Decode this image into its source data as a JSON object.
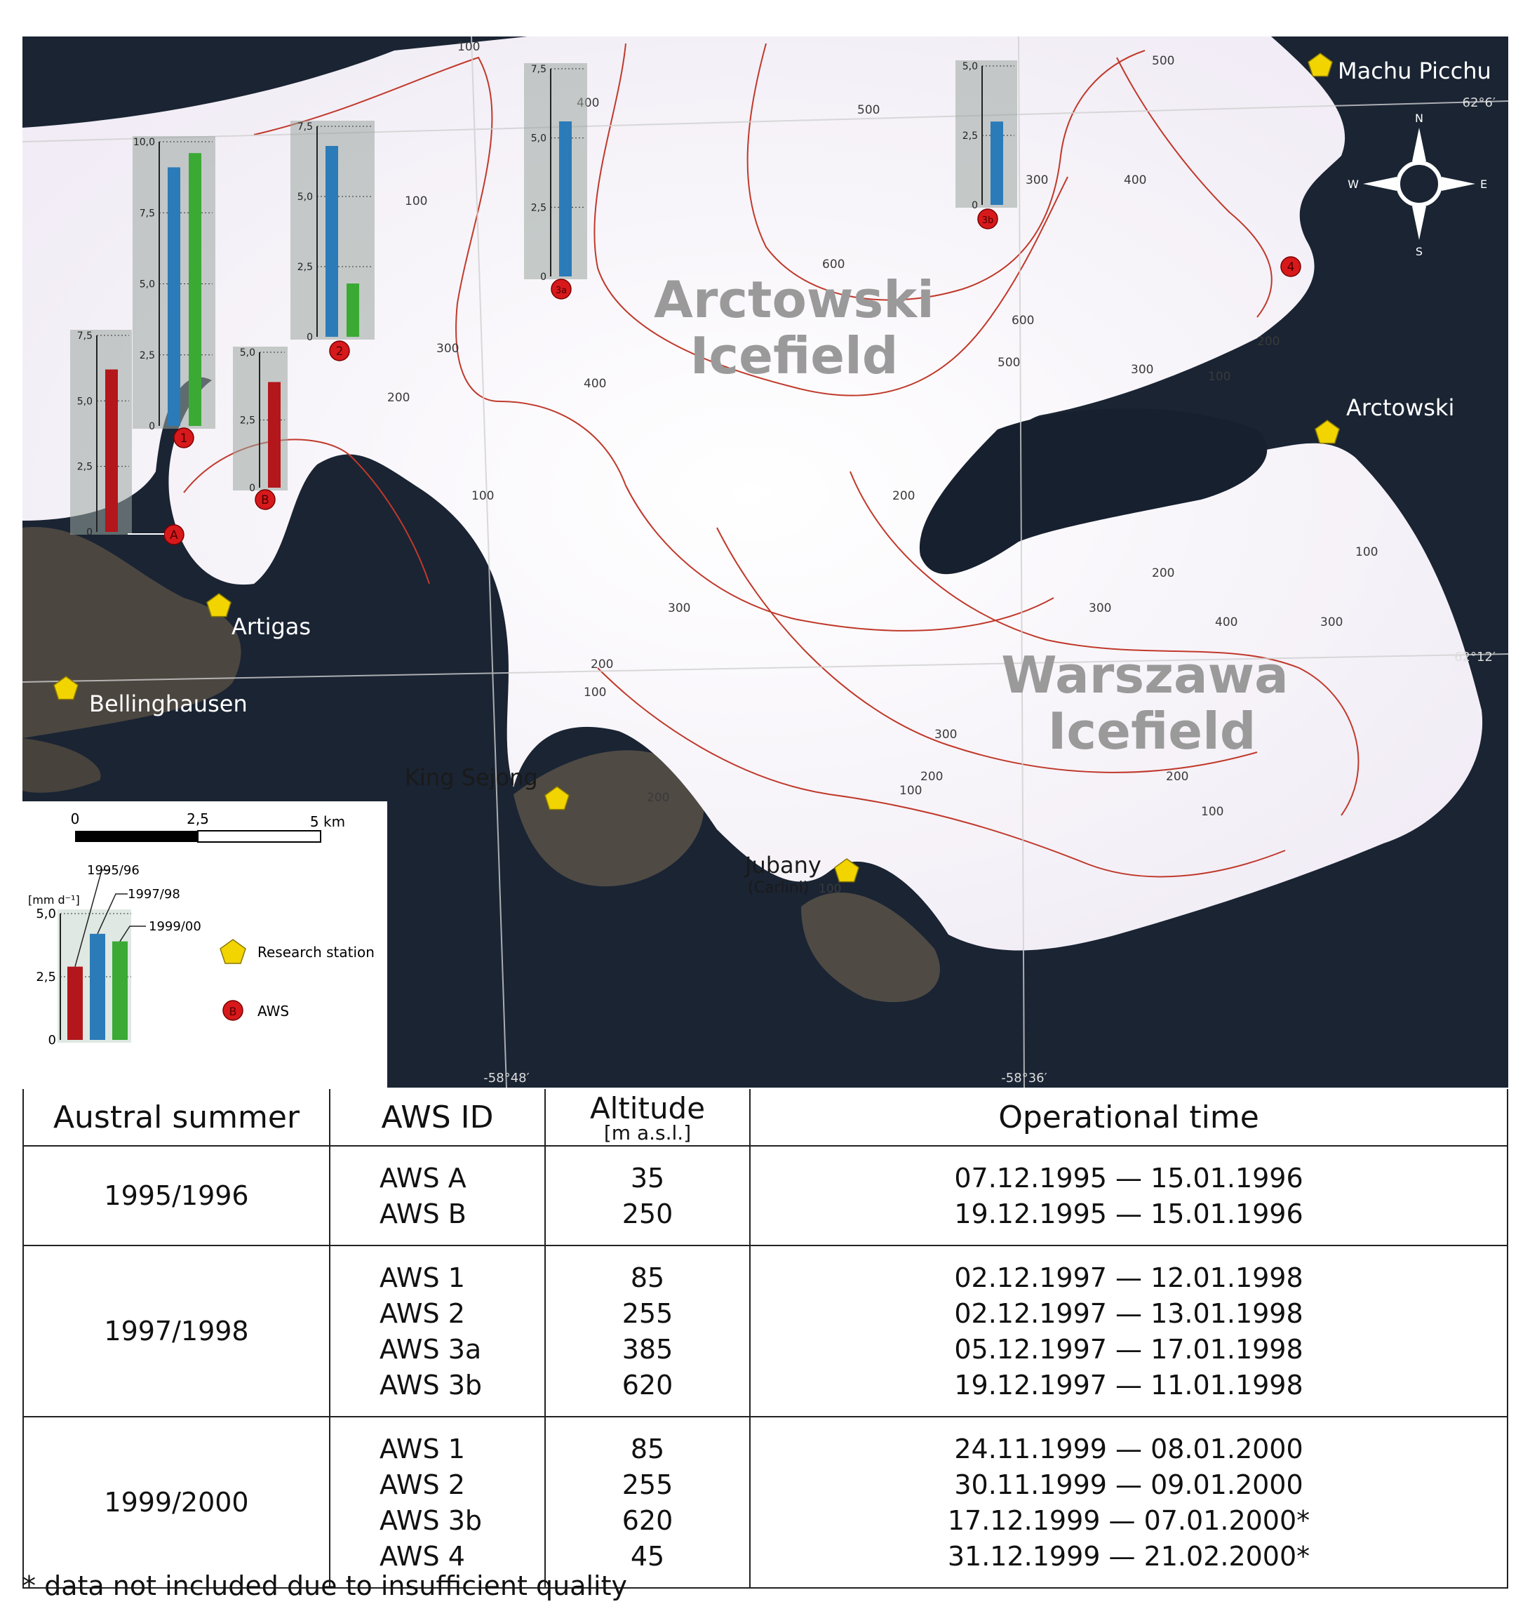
{
  "map": {
    "field_labels": [
      {
        "id": "arctowski-icefield",
        "line1": "Arctowski",
        "line2": "Icefield"
      },
      {
        "id": "warszawa-icefield",
        "line1": "Warszawa",
        "line2": "Icefield"
      }
    ],
    "stations": [
      {
        "id": "machu-picchu",
        "name": "Machu Picchu",
        "sub": ""
      },
      {
        "id": "arctowski",
        "name": "Arctowski",
        "sub": ""
      },
      {
        "id": "artigas",
        "name": "Artigas",
        "sub": ""
      },
      {
        "id": "bellinghausen",
        "name": "Bellinghausen",
        "sub": ""
      },
      {
        "id": "king-sejong",
        "name": "King Sejong",
        "sub": ""
      },
      {
        "id": "jubany",
        "name": "Jubany",
        "sub": "(Carlini)"
      }
    ],
    "aws_markers": [
      "A",
      "B",
      "1",
      "2",
      "3a",
      "3b",
      "4"
    ],
    "contour_labels": [
      "100",
      "200",
      "300",
      "400",
      "500",
      "600"
    ],
    "coordinates": {
      "lat1": "62°6′",
      "lat2": "62°12′",
      "lon1": "-58°48′",
      "lon2": "-58°36′"
    },
    "compass": {
      "n": "N",
      "s": "S",
      "e": "E",
      "w": "W"
    },
    "scale_bar": {
      "t0": "0",
      "t1": "2,5",
      "t2": "5 km"
    },
    "legend": {
      "unit": "[mm d⁻¹]",
      "series": [
        "1995/96",
        "1997/98",
        "1999/00"
      ],
      "research_station": "Research station",
      "aws": "AWS",
      "aws_symbol": "B",
      "y_ticks": [
        "0",
        "2,5",
        "5,0"
      ],
      "example_values": [
        2.9,
        4.2,
        3.9
      ]
    },
    "colors": {
      "s1995": "#b3161b",
      "s1997": "#2b7bb9",
      "s1999": "#3aaa35",
      "station": "#f2d400",
      "aws": "#d7191c",
      "contour": "#c0392b"
    }
  },
  "chart_data": [
    {
      "type": "bar",
      "station": "A",
      "series": [
        "1995/96"
      ],
      "values": [
        6.2
      ],
      "ylim": [
        0,
        7.5
      ],
      "ticks": [
        "0",
        "2,5",
        "5,0",
        "7,5"
      ]
    },
    {
      "type": "bar",
      "station": "1",
      "series": [
        "1997/98",
        "1999/00"
      ],
      "values": [
        9.1,
        9.6
      ],
      "ylim": [
        0,
        10
      ],
      "ticks": [
        "0",
        "2,5",
        "5,0",
        "7,5",
        "10,0"
      ]
    },
    {
      "type": "bar",
      "station": "B",
      "series": [
        "1995/96"
      ],
      "values": [
        3.9
      ],
      "ylim": [
        0,
        5
      ],
      "ticks": [
        "0",
        "2,5",
        "5,0"
      ]
    },
    {
      "type": "bar",
      "station": "2",
      "series": [
        "1997/98",
        "1999/00"
      ],
      "values": [
        6.8,
        1.9
      ],
      "ylim": [
        0,
        7.5
      ],
      "ticks": [
        "0",
        "2,5",
        "5,0",
        "7,5"
      ]
    },
    {
      "type": "bar",
      "station": "3a",
      "series": [
        "1997/98"
      ],
      "values": [
        5.6
      ],
      "ylim": [
        0,
        7.5
      ],
      "ticks": [
        "0",
        "2,5",
        "5,0",
        "7,5"
      ]
    },
    {
      "type": "bar",
      "station": "3b",
      "series": [
        "1997/98"
      ],
      "values": [
        3.0
      ],
      "ylim": [
        0,
        5
      ],
      "ticks": [
        "0",
        "2,5",
        "5,0"
      ]
    }
  ],
  "table": {
    "headers": {
      "summer": "Austral summer",
      "aws": "AWS ID",
      "alt": "Altitude",
      "alt_unit": "[m a.s.l.]",
      "op": "Operational time"
    },
    "groups": [
      {
        "summer": "1995/1996",
        "rows": [
          {
            "aws": "AWS A",
            "alt": "35",
            "op": "07.12.1995 — 15.01.1996"
          },
          {
            "aws": "AWS B",
            "alt": "250",
            "op": "19.12.1995 — 15.01.1996"
          }
        ]
      },
      {
        "summer": "1997/1998",
        "rows": [
          {
            "aws": "AWS 1",
            "alt": "85",
            "op": "02.12.1997 — 12.01.1998"
          },
          {
            "aws": "AWS 2",
            "alt": "255",
            "op": "02.12.1997 — 13.01.1998"
          },
          {
            "aws": "AWS 3a",
            "alt": "385",
            "op": "05.12.1997 — 17.01.1998"
          },
          {
            "aws": "AWS 3b",
            "alt": "620",
            "op": "19.12.1997 — 11.01.1998"
          }
        ]
      },
      {
        "summer": "1999/2000",
        "rows": [
          {
            "aws": "AWS 1",
            "alt": "85",
            "op": "24.11.1999 — 08.01.2000"
          },
          {
            "aws": "AWS 2",
            "alt": "255",
            "op": "30.11.1999 — 09.01.2000"
          },
          {
            "aws": "AWS 3b",
            "alt": "620",
            "op": "17.12.1999 — 07.01.2000*"
          },
          {
            "aws": "AWS 4",
            "alt": "45",
            "op": "31.12.1999 — 21.02.2000*"
          }
        ]
      }
    ]
  },
  "footnote": "* data not included due to insufficient quality"
}
